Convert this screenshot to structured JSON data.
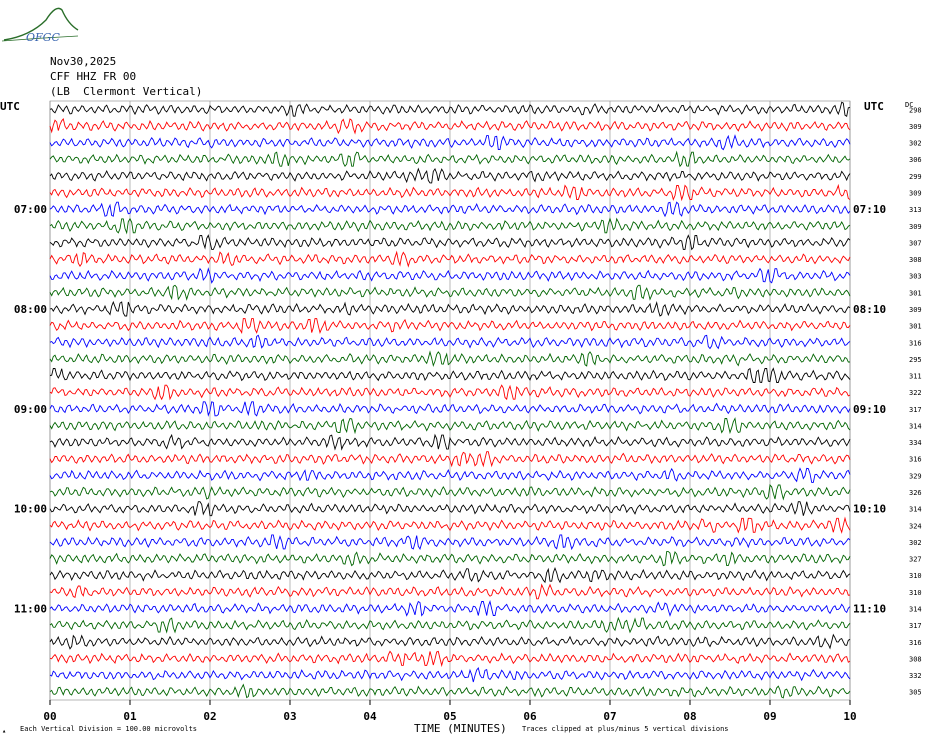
{
  "logo": {
    "text": "OFGC",
    "color": "#2a6e2a"
  },
  "header": {
    "date": "Nov30,2025",
    "station": "CFF HHZ FR 00",
    "location": "(LB  Clermont Vertical)"
  },
  "left_axis_unit": "UTC",
  "right_axis_unit": "UTC",
  "dc_header": "DC",
  "footer": {
    "scale_note": "Each Vertical Division =  100.00 microvolts",
    "time_label": "TIME (MINUTES)",
    "clip_note": "Traces clipped at plus/minus 5 vertical divisions"
  },
  "colors": {
    "black": "#000000",
    "red": "#ff0000",
    "blue": "#0000ff",
    "green": "#006400"
  },
  "chart_data": {
    "type": "line",
    "subtype": "helicorder",
    "x_ticks": [
      "00",
      "01",
      "02",
      "03",
      "04",
      "05",
      "06",
      "07",
      "08",
      "09",
      "10"
    ],
    "xlim": [
      0,
      10
    ],
    "left_hour_labels": [
      {
        "label": "07:00",
        "row": 6
      },
      {
        "label": "08:00",
        "row": 12
      },
      {
        "label": "09:00",
        "row": 18
      },
      {
        "label": "10:00",
        "row": 24
      },
      {
        "label": "11:00",
        "row": 30
      }
    ],
    "right_hour_labels": [
      {
        "label": "07:10",
        "row": 6
      },
      {
        "label": "08:10",
        "row": 12
      },
      {
        "label": "09:10",
        "row": 18
      },
      {
        "label": "10:10",
        "row": 24
      },
      {
        "label": "11:10",
        "row": 30
      }
    ],
    "color_cycle": [
      "black",
      "red",
      "blue",
      "green"
    ],
    "traces": [
      {
        "dc": 298,
        "color": "black"
      },
      {
        "dc": 309,
        "color": "red"
      },
      {
        "dc": 302,
        "color": "blue"
      },
      {
        "dc": 306,
        "color": "green"
      },
      {
        "dc": 299,
        "color": "black"
      },
      {
        "dc": 309,
        "color": "red"
      },
      {
        "dc": 313,
        "color": "blue"
      },
      {
        "dc": 309,
        "color": "green"
      },
      {
        "dc": 307,
        "color": "black"
      },
      {
        "dc": 308,
        "color": "red"
      },
      {
        "dc": 303,
        "color": "blue"
      },
      {
        "dc": 301,
        "color": "green"
      },
      {
        "dc": 309,
        "color": "black"
      },
      {
        "dc": 301,
        "color": "red"
      },
      {
        "dc": 316,
        "color": "blue"
      },
      {
        "dc": 295,
        "color": "green"
      },
      {
        "dc": 311,
        "color": "black"
      },
      {
        "dc": 322,
        "color": "red"
      },
      {
        "dc": 317,
        "color": "blue"
      },
      {
        "dc": 314,
        "color": "green"
      },
      {
        "dc": 334,
        "color": "black"
      },
      {
        "dc": 316,
        "color": "red"
      },
      {
        "dc": 329,
        "color": "blue"
      },
      {
        "dc": 326,
        "color": "green"
      },
      {
        "dc": 314,
        "color": "black"
      },
      {
        "dc": 324,
        "color": "red"
      },
      {
        "dc": 302,
        "color": "blue"
      },
      {
        "dc": 327,
        "color": "green"
      },
      {
        "dc": 310,
        "color": "black"
      },
      {
        "dc": 310,
        "color": "red"
      },
      {
        "dc": 314,
        "color": "blue"
      },
      {
        "dc": 317,
        "color": "green"
      },
      {
        "dc": 316,
        "color": "black"
      },
      {
        "dc": 308,
        "color": "red"
      },
      {
        "dc": 332,
        "color": "blue"
      },
      {
        "dc": 305,
        "color": "green"
      }
    ]
  }
}
